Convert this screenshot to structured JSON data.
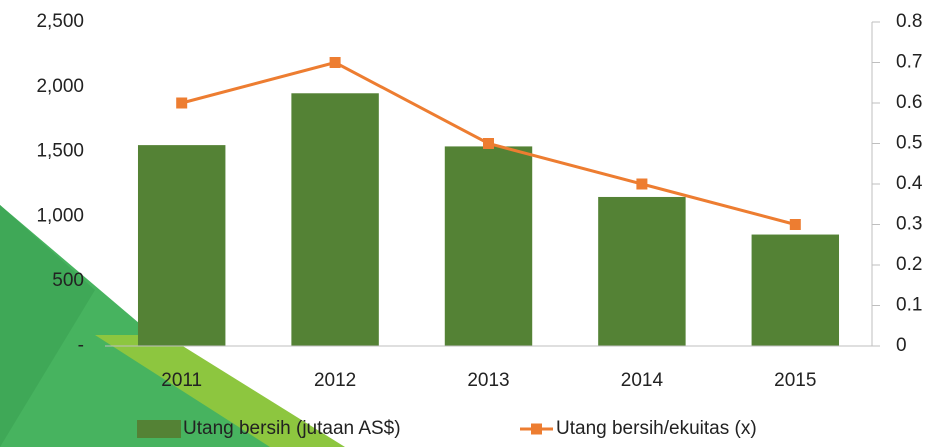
{
  "chart_data": {
    "type": "bar_line",
    "categories": [
      "2011",
      "2012",
      "2013",
      "2014",
      "2015"
    ],
    "series": [
      {
        "name": "Utang bersih (jutaan AS$)",
        "color": "#548235",
        "type": "bar",
        "values": [
          1550,
          1950,
          1540,
          1150,
          860
        ]
      },
      {
        "name": "Utang bersih/ekuitas (x)",
        "color": "#ed7d31",
        "type": "line",
        "axis": "y2",
        "values": [
          0.6,
          0.7,
          0.5,
          0.4,
          0.3
        ]
      }
    ],
    "ylim": [
      0,
      2500
    ],
    "yticks": [
      {
        "value": 0,
        "label": "-"
      },
      {
        "value": 500,
        "label": "500"
      },
      {
        "value": 1000,
        "label": "1,000"
      },
      {
        "value": 1500,
        "label": "1,500"
      },
      {
        "value": 2000,
        "label": "2,000"
      },
      {
        "value": 2500,
        "label": "2,500"
      }
    ],
    "y2lim": [
      0,
      0.8
    ],
    "y2ticks": [
      0,
      0.1,
      0.2,
      0.3,
      0.4,
      0.5,
      0.6,
      0.7,
      0.8
    ],
    "legend": "bottom"
  }
}
